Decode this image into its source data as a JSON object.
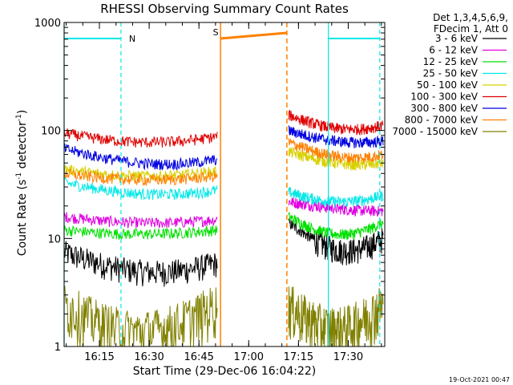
{
  "chart_data": {
    "type": "line",
    "title": "RHESSI Observing Summary Count Rates",
    "xlabel": "Start Time (29-Dec-06 16:04:22)",
    "ylabel_main": "Count Rate (s",
    "ylabel_sup1": "-1",
    "ylabel_mid": " detector",
    "ylabel_sup2": "-1",
    "ylabel_end": ")",
    "y_scale": "log",
    "ylim": [
      1,
      1000
    ],
    "xlim_minutes": [
      "16:04:22",
      "17:41:00"
    ],
    "x_ticks": [
      "16:15",
      "16:30",
      "16:45",
      "17:00",
      "17:15",
      "17:30"
    ],
    "y_ticks": [
      "1",
      "10",
      "100",
      "1000"
    ],
    "legend_header": [
      "Det 1,3,4,5,6,9,",
      "FDecim 1, Att 0"
    ],
    "series": [
      {
        "name": "3 - 6 keV",
        "color": "#000000",
        "seg1": [
          7.5,
          5.0,
          6.0
        ],
        "seg2": [
          14,
          8,
          10
        ]
      },
      {
        "name": "6 - 12 keV",
        "color": "#e000e0",
        "seg1": [
          16,
          14,
          15
        ],
        "seg2": [
          22,
          19,
          18
        ]
      },
      {
        "name": "12 - 25 keV",
        "color": "#00e000",
        "seg1": [
          12,
          11,
          12
        ],
        "seg2": [
          16,
          11,
          14
        ]
      },
      {
        "name": "25 - 50 keV",
        "color": "#00e8e8",
        "seg1": [
          33,
          26,
          28
        ],
        "seg2": [
          27,
          22,
          25
        ]
      },
      {
        "name": "50 - 100 keV",
        "color": "#d8d000",
        "seg1": [
          44,
          38,
          42
        ],
        "seg2": [
          64,
          50,
          50
        ]
      },
      {
        "name": "100 - 300 keV",
        "color": "#e00000",
        "seg1": [
          95,
          78,
          88
        ],
        "seg2": [
          140,
          105,
          112
        ]
      },
      {
        "name": "300 - 800 keV",
        "color": "#0000e0",
        "seg1": [
          68,
          50,
          54
        ],
        "seg2": [
          100,
          80,
          80
        ]
      },
      {
        "name": "800 - 7000 keV",
        "color": "#ff8000",
        "seg1": [
          40,
          35,
          38
        ],
        "seg2": [
          78,
          58,
          60
        ]
      },
      {
        "name": "7000 - 15000 keV",
        "color": "#808000",
        "seg1": [
          2.5,
          1.4,
          2.5
        ],
        "seg2": [
          2.5,
          1.5,
          2.5
        ]
      }
    ],
    "segments": [
      {
        "start": "16:04:22",
        "end": "16:50:30"
      },
      {
        "start": "17:12:00",
        "end": "17:40:30"
      }
    ],
    "markers": [
      {
        "label": "N",
        "color": "#00e8e8",
        "interval": [
          "16:04:22",
          "16:21:30"
        ]
      },
      {
        "label": "",
        "color": "#00e8e8",
        "interval": [
          "17:24:00",
          "17:39:30"
        ]
      },
      {
        "label": "S",
        "color": "#ff8000",
        "interval": [
          "16:51:30",
          "17:11:30"
        ]
      }
    ],
    "timestamp": "19-Oct-2021 00:47"
  }
}
